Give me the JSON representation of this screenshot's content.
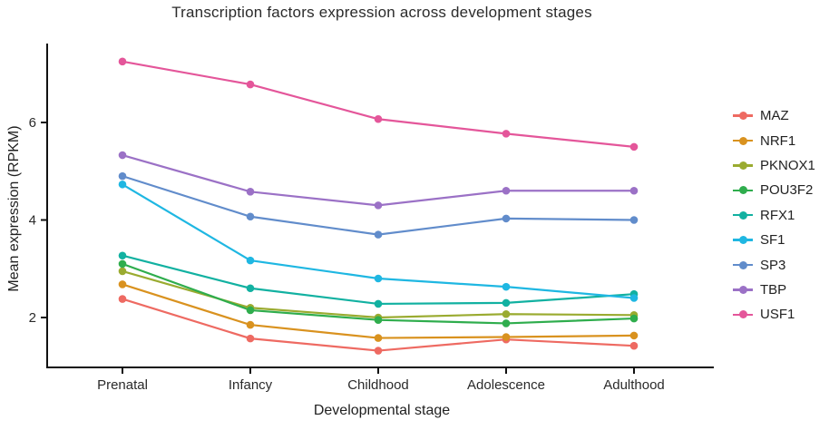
{
  "title": "Transcription factors expression across development stages",
  "axes": {
    "x_label": "Developmental stage",
    "y_label": "Mean expression (RPKM)"
  },
  "colors": {
    "background": "#ffffff",
    "axis_line": "#111111",
    "tick_text": "#2a2a2a"
  },
  "chart_data": {
    "type": "line",
    "title": "Transcription factors expression across development stages",
    "xlabel": "Developmental stage",
    "ylabel": "Mean expression (RPKM)",
    "categories": [
      "Prenatal",
      "Infancy",
      "Childhood",
      "Adolescence",
      "Adulthood"
    ],
    "y_ticks": [
      2,
      4,
      6
    ],
    "ylim": [
      1.1,
      7.6
    ],
    "grid": false,
    "legend_position": "right",
    "marker": "circle",
    "series": [
      {
        "name": "MAZ",
        "color": "#ee6a62",
        "values": [
          2.38,
          1.57,
          1.32,
          1.55,
          1.42
        ]
      },
      {
        "name": "NRF1",
        "color": "#d9921f",
        "values": [
          2.68,
          1.85,
          1.58,
          1.6,
          1.63
        ]
      },
      {
        "name": "PKNOX1",
        "color": "#9aab30",
        "values": [
          2.95,
          2.2,
          2.0,
          2.07,
          2.05
        ]
      },
      {
        "name": "POU3F2",
        "color": "#2fad4d",
        "values": [
          3.1,
          2.15,
          1.95,
          1.88,
          1.98
        ]
      },
      {
        "name": "RFX1",
        "color": "#12b1a1",
        "values": [
          3.27,
          2.6,
          2.28,
          2.3,
          2.48
        ]
      },
      {
        "name": "SF1",
        "color": "#1fb7e2",
        "values": [
          4.73,
          3.17,
          2.8,
          2.63,
          2.4
        ]
      },
      {
        "name": "SP3",
        "color": "#618ccb",
        "values": [
          4.9,
          4.07,
          3.7,
          4.03,
          4.0
        ]
      },
      {
        "name": "TBP",
        "color": "#9b71c6",
        "values": [
          5.33,
          4.58,
          4.3,
          4.6,
          4.6
        ]
      },
      {
        "name": "USF1",
        "color": "#e4569a",
        "values": [
          7.25,
          6.78,
          6.07,
          5.77,
          5.5
        ]
      }
    ]
  }
}
